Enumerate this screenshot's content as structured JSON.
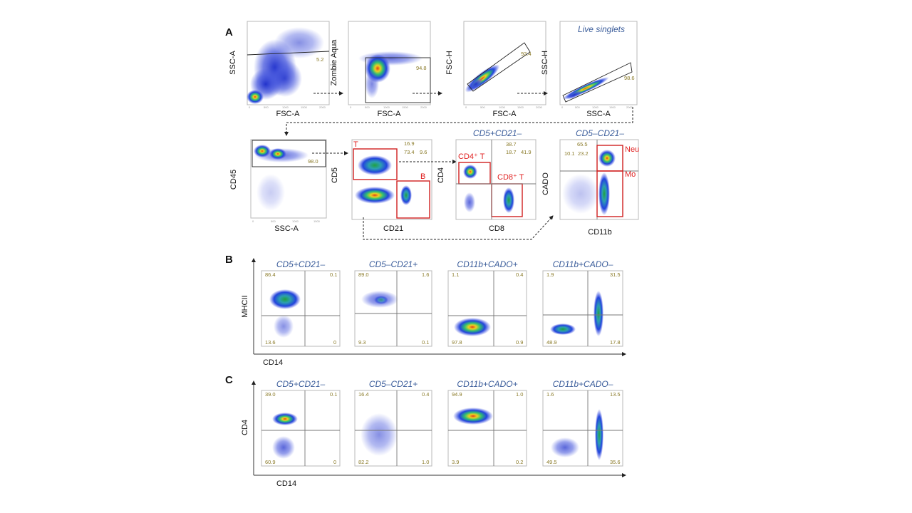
{
  "figure": {
    "type": "flow-cytometry-gating-figure"
  },
  "colors": {
    "title": "#3a5c9a",
    "gate": "#e02020",
    "percent": "#8a7a28",
    "density_low": "#2233cc",
    "density_high": "#d83a1a"
  },
  "panels": {
    "A": "A",
    "B": "B",
    "C": "C"
  },
  "chart_data": [
    {
      "id": "A1",
      "type": "scatter",
      "xlabel": "FSC-A",
      "ylabel": "SSC-A",
      "title": "",
      "gate_values": [
        "5.2"
      ],
      "ticks": [
        "0",
        "500",
        "1000",
        "1500",
        "2000"
      ]
    },
    {
      "id": "A2",
      "type": "scatter",
      "xlabel": "FSC-A",
      "ylabel": "Zombie Aqua",
      "title": "",
      "gate_values": [
        "94.8"
      ],
      "ticks": [
        "0",
        "500",
        "1000",
        "1500",
        "2000"
      ]
    },
    {
      "id": "A3",
      "type": "scatter",
      "xlabel": "FSC-A",
      "ylabel": "FSC-H",
      "title": "",
      "gate_values": [
        "92.4"
      ],
      "ticks": [
        "0",
        "500",
        "1000",
        "1500",
        "2000"
      ]
    },
    {
      "id": "A4",
      "type": "scatter",
      "xlabel": "SSC-A",
      "ylabel": "SSC-H",
      "title": "Live singlets",
      "gate_values": [
        "98.6"
      ],
      "ticks": [
        "0",
        "500",
        "1000",
        "1500",
        "2000"
      ]
    },
    {
      "id": "A5",
      "type": "scatter",
      "xlabel": "SSC-A",
      "ylabel": "CD45",
      "title": "",
      "gate_values": [
        "98.0"
      ],
      "ticks": [
        "0",
        "500",
        "1000",
        "1500"
      ]
    },
    {
      "id": "A6",
      "type": "scatter",
      "xlabel": "CD21",
      "ylabel": "CD5",
      "title": "",
      "gate_labels": [
        "T",
        "B"
      ],
      "gate_values": [
        "16.9",
        "73.4",
        "9.6"
      ]
    },
    {
      "id": "A7",
      "type": "scatter",
      "xlabel": "CD8",
      "ylabel": "CD4",
      "title": "CD5+CD21–",
      "gate_labels": [
        "CD4⁺ T",
        "CD8⁺ T"
      ],
      "gate_values": [
        "38.7",
        "18.7",
        "41.9"
      ]
    },
    {
      "id": "A8",
      "type": "scatter",
      "xlabel": "CD11b",
      "ylabel": "CADO",
      "title": "CD5–CD21–",
      "gate_labels": [
        "Neu",
        "Mo"
      ],
      "gate_values": [
        "65.5",
        "10.1",
        "23.2"
      ]
    },
    {
      "id": "B1",
      "type": "scatter",
      "title": "CD5+CD21–",
      "quadrants": {
        "UL": "86.4",
        "UR": "0.1",
        "LL": "13.6",
        "LR": "0"
      }
    },
    {
      "id": "B2",
      "type": "scatter",
      "title": "CD5–CD21+",
      "quadrants": {
        "UL": "89.0",
        "UR": "1.6",
        "LL": "9.3",
        "LR": "0.1"
      }
    },
    {
      "id": "B3",
      "type": "scatter",
      "title": "CD11b+CADO+",
      "quadrants": {
        "UL": "1.1",
        "UR": "0.4",
        "LL": "97.8",
        "LR": "0.9"
      }
    },
    {
      "id": "B4",
      "type": "scatter",
      "title": "CD11b+CADO–",
      "quadrants": {
        "UL": "1.9",
        "UR": "31.5",
        "LL": "48.9",
        "LR": "17.8"
      }
    },
    {
      "id": "C1",
      "type": "scatter",
      "title": "CD5+CD21–",
      "quadrants": {
        "UL": "39.0",
        "UR": "0.1",
        "LL": "60.9",
        "LR": "0"
      }
    },
    {
      "id": "C2",
      "type": "scatter",
      "title": "CD5–CD21+",
      "quadrants": {
        "UL": "16.4",
        "UR": "0.4",
        "LL": "82.2",
        "LR": "1.0"
      }
    },
    {
      "id": "C3",
      "type": "scatter",
      "title": "CD11b+CADO+",
      "quadrants": {
        "UL": "94.9",
        "UR": "1.0",
        "LL": "3.9",
        "LR": "0.2"
      }
    },
    {
      "id": "C4",
      "type": "scatter",
      "title": "CD11b+CADO–",
      "quadrants": {
        "UL": "1.6",
        "UR": "13.5",
        "LL": "49.5",
        "LR": "35.6"
      }
    }
  ],
  "shared_axes": {
    "B": {
      "xlabel": "CD14",
      "ylabel": "MHCII"
    },
    "C": {
      "xlabel": "CD14",
      "ylabel": "CD4"
    }
  }
}
